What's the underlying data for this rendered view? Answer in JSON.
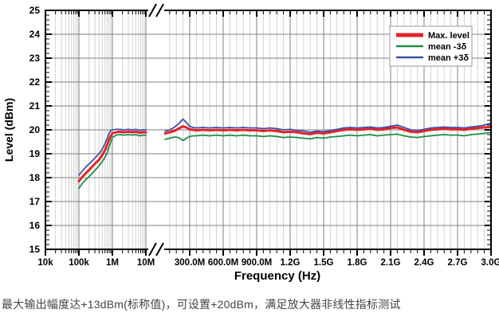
{
  "caption": "最大输出幅度达+13dBm(标称值)，可设置+20dBm，满足放大器非线性指标测试",
  "colors": {
    "max_level": "#e32228",
    "mean_minus_3sigma": "#1e8c46",
    "mean_plus_3sigma": "#3f51a5",
    "major_grid": "#808080",
    "minor_grid": "#d2d2d2",
    "axis": "#000000",
    "legend_border": "#999999",
    "caption_text": "#444444"
  },
  "chart_data": {
    "type": "line",
    "title": "",
    "xlabel": "Frequency (Hz)",
    "ylabel": "Level (dBm)",
    "ylim": [
      15,
      25
    ],
    "y_ticks": [
      15,
      16,
      17,
      18,
      19,
      20,
      21,
      22,
      23,
      24,
      25
    ],
    "y_minor_step": 0.2,
    "x_axis_note": "broken axis: log scale 10kHz-10MHz, break, then linear 80MHz-3GHz; frequencies in data are MHz",
    "x_log_ticks": [
      {
        "f": 0.01,
        "label": "10k"
      },
      {
        "f": 0.1,
        "label": "100k"
      },
      {
        "f": 1,
        "label": "1M"
      },
      {
        "f": 10,
        "label": "10M"
      }
    ],
    "x_linear_ticks": [
      {
        "f": 300,
        "label": "300.0M"
      },
      {
        "f": 600,
        "label": "600.0M"
      },
      {
        "f": 900,
        "label": "900.0M"
      },
      {
        "f": 1200,
        "label": "1.2G"
      },
      {
        "f": 1500,
        "label": "1.5G"
      },
      {
        "f": 1800,
        "label": "1.8G"
      },
      {
        "f": 2100,
        "label": "2.1G"
      },
      {
        "f": 2400,
        "label": "2.4G"
      },
      {
        "f": 2700,
        "label": "2.7G"
      },
      {
        "f": 3000,
        "label": "3.0G"
      }
    ],
    "grid": true,
    "legend_position": "top-right",
    "legend": [
      {
        "label": "Max. level",
        "color": "#e32228",
        "swatch_width": 5
      },
      {
        "label": "mean -3δ",
        "color": "#1e8c46",
        "swatch_width": 2.5
      },
      {
        "label": "mean +3δ",
        "color": "#3f51a5",
        "swatch_width": 2.5
      }
    ],
    "series": [
      {
        "name": "Max. level",
        "color": "#e32228",
        "line_width": 3,
        "log_points": [
          [
            0.1,
            17.85
          ],
          [
            0.13,
            18.05
          ],
          [
            0.17,
            18.22
          ],
          [
            0.22,
            18.38
          ],
          [
            0.3,
            18.58
          ],
          [
            0.4,
            18.75
          ],
          [
            0.5,
            18.95
          ],
          [
            0.6,
            19.15
          ],
          [
            0.7,
            19.38
          ],
          [
            0.8,
            19.6
          ],
          [
            0.9,
            19.75
          ],
          [
            1,
            19.85
          ],
          [
            1.3,
            19.9
          ],
          [
            1.7,
            19.92
          ],
          [
            2.2,
            19.9
          ],
          [
            3,
            19.92
          ],
          [
            4,
            19.9
          ],
          [
            5,
            19.92
          ],
          [
            6.5,
            19.88
          ],
          [
            8,
            19.9
          ],
          [
            10,
            19.9
          ]
        ],
        "linear_points": [
          [
            80,
            19.85
          ],
          [
            120,
            19.9
          ],
          [
            160,
            19.95
          ],
          [
            200,
            20.05
          ],
          [
            240,
            20.15
          ],
          [
            270,
            20.1
          ],
          [
            300,
            20.02
          ],
          [
            330,
            20.0
          ],
          [
            360,
            19.98
          ],
          [
            420,
            20.0
          ],
          [
            480,
            19.98
          ],
          [
            540,
            20.0
          ],
          [
            600,
            19.98
          ],
          [
            660,
            20.0
          ],
          [
            720,
            19.98
          ],
          [
            780,
            20.0
          ],
          [
            840,
            19.98
          ],
          [
            900,
            19.98
          ],
          [
            960,
            19.95
          ],
          [
            1020,
            19.98
          ],
          [
            1080,
            19.95
          ],
          [
            1140,
            19.9
          ],
          [
            1200,
            19.92
          ],
          [
            1260,
            19.9
          ],
          [
            1320,
            19.85
          ],
          [
            1380,
            19.82
          ],
          [
            1440,
            19.88
          ],
          [
            1500,
            19.85
          ],
          [
            1560,
            19.9
          ],
          [
            1620,
            19.95
          ],
          [
            1680,
            20.0
          ],
          [
            1740,
            20.02
          ],
          [
            1800,
            20.0
          ],
          [
            1860,
            20.02
          ],
          [
            1920,
            20.05
          ],
          [
            1980,
            20.0
          ],
          [
            2040,
            20.02
          ],
          [
            2100,
            20.08
          ],
          [
            2160,
            20.1
          ],
          [
            2220,
            20.0
          ],
          [
            2280,
            19.92
          ],
          [
            2340,
            19.9
          ],
          [
            2400,
            19.95
          ],
          [
            2460,
            20.0
          ],
          [
            2520,
            20.02
          ],
          [
            2580,
            20.05
          ],
          [
            2640,
            20.02
          ],
          [
            2700,
            20.02
          ],
          [
            2760,
            20.0
          ],
          [
            2820,
            20.05
          ],
          [
            2880,
            20.08
          ],
          [
            2940,
            20.1
          ],
          [
            3000,
            20.12
          ]
        ]
      },
      {
        "name": "mean -3δ",
        "color": "#1e8c46",
        "line_width": 1.8,
        "log_points": [
          [
            0.1,
            17.55
          ],
          [
            0.13,
            17.78
          ],
          [
            0.17,
            17.95
          ],
          [
            0.22,
            18.1
          ],
          [
            0.3,
            18.3
          ],
          [
            0.4,
            18.5
          ],
          [
            0.5,
            18.68
          ],
          [
            0.6,
            18.85
          ],
          [
            0.7,
            19.05
          ],
          [
            0.8,
            19.3
          ],
          [
            0.9,
            19.5
          ],
          [
            1,
            19.68
          ],
          [
            1.3,
            19.78
          ],
          [
            1.7,
            19.8
          ],
          [
            2.2,
            19.78
          ],
          [
            3,
            19.8
          ],
          [
            4,
            19.78
          ],
          [
            5,
            19.8
          ],
          [
            6.5,
            19.75
          ],
          [
            8,
            19.78
          ],
          [
            10,
            19.78
          ]
        ],
        "linear_points": [
          [
            80,
            19.6
          ],
          [
            120,
            19.65
          ],
          [
            160,
            19.7
          ],
          [
            200,
            19.68
          ],
          [
            240,
            19.55
          ],
          [
            270,
            19.65
          ],
          [
            300,
            19.72
          ],
          [
            330,
            19.75
          ],
          [
            360,
            19.75
          ],
          [
            420,
            19.78
          ],
          [
            480,
            19.75
          ],
          [
            540,
            19.78
          ],
          [
            600,
            19.75
          ],
          [
            660,
            19.78
          ],
          [
            720,
            19.75
          ],
          [
            780,
            19.78
          ],
          [
            840,
            19.75
          ],
          [
            900,
            19.75
          ],
          [
            960,
            19.72
          ],
          [
            1020,
            19.75
          ],
          [
            1080,
            19.72
          ],
          [
            1140,
            19.68
          ],
          [
            1200,
            19.7
          ],
          [
            1260,
            19.68
          ],
          [
            1320,
            19.65
          ],
          [
            1380,
            19.62
          ],
          [
            1440,
            19.68
          ],
          [
            1500,
            19.65
          ],
          [
            1560,
            19.7
          ],
          [
            1620,
            19.72
          ],
          [
            1680,
            19.75
          ],
          [
            1740,
            19.78
          ],
          [
            1800,
            19.75
          ],
          [
            1860,
            19.78
          ],
          [
            1920,
            19.8
          ],
          [
            1980,
            19.75
          ],
          [
            2040,
            19.78
          ],
          [
            2100,
            19.8
          ],
          [
            2160,
            19.82
          ],
          [
            2220,
            19.75
          ],
          [
            2280,
            19.7
          ],
          [
            2340,
            19.68
          ],
          [
            2400,
            19.72
          ],
          [
            2460,
            19.75
          ],
          [
            2520,
            19.78
          ],
          [
            2580,
            19.8
          ],
          [
            2640,
            19.78
          ],
          [
            2700,
            19.78
          ],
          [
            2760,
            19.75
          ],
          [
            2820,
            19.8
          ],
          [
            2880,
            19.82
          ],
          [
            2940,
            19.85
          ],
          [
            3000,
            19.9
          ]
        ]
      },
      {
        "name": "mean +3δ",
        "color": "#3f51a5",
        "line_width": 1.8,
        "log_points": [
          [
            0.1,
            18.1
          ],
          [
            0.13,
            18.3
          ],
          [
            0.17,
            18.48
          ],
          [
            0.22,
            18.62
          ],
          [
            0.3,
            18.82
          ],
          [
            0.4,
            19.0
          ],
          [
            0.5,
            19.2
          ],
          [
            0.6,
            19.42
          ],
          [
            0.7,
            19.65
          ],
          [
            0.8,
            19.85
          ],
          [
            0.9,
            19.97
          ],
          [
            1,
            20.0
          ],
          [
            1.3,
            20.02
          ],
          [
            1.7,
            20.02
          ],
          [
            2.2,
            20.0
          ],
          [
            3,
            20.02
          ],
          [
            4,
            20.0
          ],
          [
            5,
            20.02
          ],
          [
            6.5,
            19.98
          ],
          [
            8,
            20.0
          ],
          [
            10,
            20.0
          ]
        ],
        "linear_points": [
          [
            80,
            19.95
          ],
          [
            120,
            20.0
          ],
          [
            160,
            20.1
          ],
          [
            200,
            20.25
          ],
          [
            240,
            20.45
          ],
          [
            270,
            20.3
          ],
          [
            300,
            20.15
          ],
          [
            330,
            20.1
          ],
          [
            360,
            20.08
          ],
          [
            420,
            20.1
          ],
          [
            480,
            20.08
          ],
          [
            540,
            20.1
          ],
          [
            600,
            20.08
          ],
          [
            660,
            20.1
          ],
          [
            720,
            20.08
          ],
          [
            780,
            20.1
          ],
          [
            840,
            20.08
          ],
          [
            900,
            20.08
          ],
          [
            960,
            20.05
          ],
          [
            1020,
            20.08
          ],
          [
            1080,
            20.05
          ],
          [
            1140,
            20.0
          ],
          [
            1200,
            20.02
          ],
          [
            1260,
            19.98
          ],
          [
            1320,
            19.95
          ],
          [
            1380,
            19.9
          ],
          [
            1440,
            19.95
          ],
          [
            1500,
            19.92
          ],
          [
            1560,
            19.98
          ],
          [
            1620,
            20.02
          ],
          [
            1680,
            20.08
          ],
          [
            1740,
            20.1
          ],
          [
            1800,
            20.08
          ],
          [
            1860,
            20.1
          ],
          [
            1920,
            20.12
          ],
          [
            1980,
            20.08
          ],
          [
            2040,
            20.1
          ],
          [
            2100,
            20.15
          ],
          [
            2160,
            20.2
          ],
          [
            2220,
            20.1
          ],
          [
            2280,
            20.0
          ],
          [
            2340,
            19.98
          ],
          [
            2400,
            20.02
          ],
          [
            2460,
            20.08
          ],
          [
            2520,
            20.1
          ],
          [
            2580,
            20.12
          ],
          [
            2640,
            20.1
          ],
          [
            2700,
            20.1
          ],
          [
            2760,
            20.08
          ],
          [
            2820,
            20.12
          ],
          [
            2880,
            20.15
          ],
          [
            2940,
            20.2
          ],
          [
            3000,
            20.28
          ]
        ]
      }
    ]
  }
}
